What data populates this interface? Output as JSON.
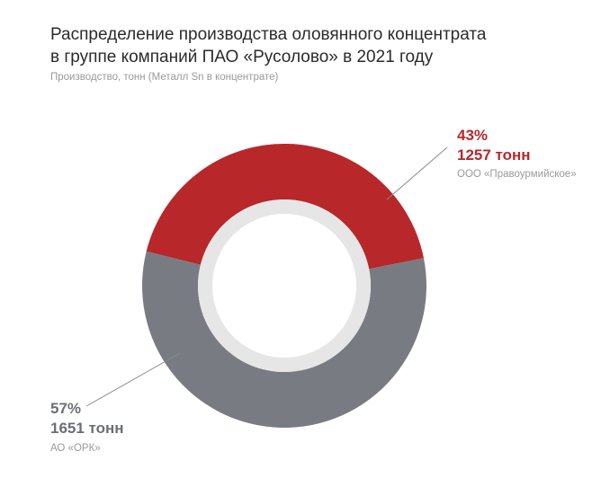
{
  "title_line1": "Распределение производства оловянного концентрата",
  "title_line2": "в группе компаний ПАО «Русолово» в 2021 году",
  "subtitle": "Производство, тонн (Металл Sn в концентрате)",
  "colors": {
    "red": "#b8272a",
    "gray": "#787c82",
    "inner_ring": "#e6e6e6"
  },
  "chart_data": {
    "type": "pie",
    "variant": "donut",
    "title": "Распределение производства оловянного концентрата в группе компаний ПАО «Русолово» в 2021 году",
    "subtitle": "Производство, тонн (Металл Sn в концентрате)",
    "slices": [
      {
        "name": "ООО «Правоурмийское»",
        "percent": 43,
        "percent_label": "43%",
        "value": 1257,
        "value_label": "1257 тонн",
        "color": "#b8272a"
      },
      {
        "name": "АО «ОРК»",
        "percent": 57,
        "percent_label": "57%",
        "value": 1651,
        "value_label": "1651 тонн",
        "color": "#787c82"
      }
    ]
  }
}
